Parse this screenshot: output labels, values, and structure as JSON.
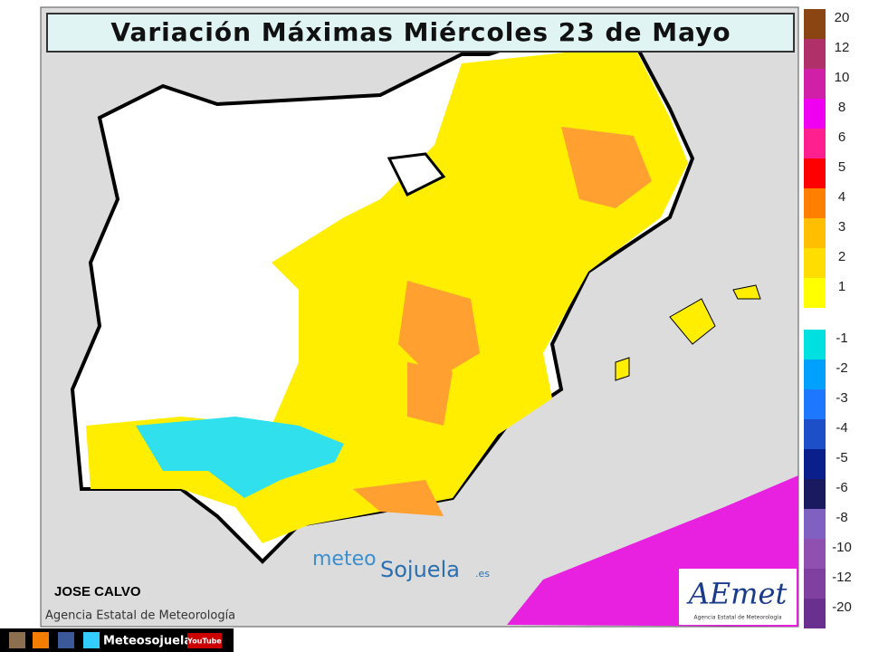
{
  "header": {
    "title": "Variación Máximas  Miércoles 23 de Mayo"
  },
  "legend": {
    "positive": [
      {
        "label": "20",
        "color": "#8b4513"
      },
      {
        "label": "12",
        "color": "#b0306a"
      },
      {
        "label": "10",
        "color": "#d020a8"
      },
      {
        "label": "8",
        "color": "#f000f0"
      },
      {
        "label": "6",
        "color": "#ff2090"
      },
      {
        "label": "5",
        "color": "#ff0000"
      },
      {
        "label": "4",
        "color": "#ff8000"
      },
      {
        "label": "3",
        "color": "#ffbf00"
      },
      {
        "label": "2",
        "color": "#ffdd00"
      },
      {
        "label": "1",
        "color": "#ffff00"
      }
    ],
    "negative": [
      {
        "label": "-1",
        "color": "#00e0e0"
      },
      {
        "label": "-2",
        "color": "#00a0ff"
      },
      {
        "label": "-3",
        "color": "#1e78ff"
      },
      {
        "label": "-4",
        "color": "#1c4fc8"
      },
      {
        "label": "-5",
        "color": "#0a1e8c"
      },
      {
        "label": "-6",
        "color": "#1a1a60"
      },
      {
        "label": "-8",
        "color": "#8060c0"
      },
      {
        "label": "-10",
        "color": "#9050b0"
      },
      {
        "label": "-12",
        "color": "#8040a0"
      },
      {
        "label": "-20",
        "color": "#6a3090"
      }
    ]
  },
  "credits": {
    "author": "JOSE CALVO",
    "agency": "Agencia Estatal de Meteorología",
    "watermark_a": "meteo",
    "watermark_b": "Sojuela",
    "watermark_c": ".es",
    "logo": "AEmet",
    "logo_sub": "Agencia Estatal de Meteorología"
  },
  "footer": {
    "handle": "Meteosojuela",
    "youtube": "YouTube"
  }
}
